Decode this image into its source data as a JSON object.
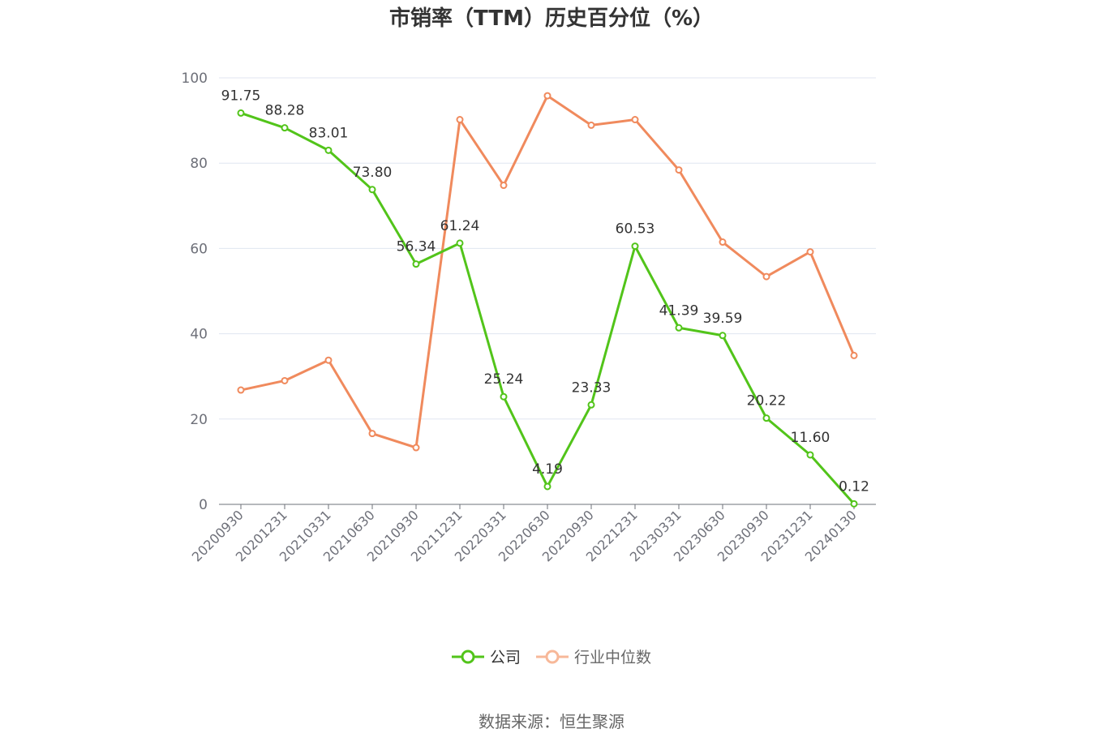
{
  "chart_data": {
    "type": "line",
    "title": "市销率（TTM）历史百分位（%）",
    "categories": [
      "20200930",
      "20201231",
      "20210331",
      "20210630",
      "20210930",
      "20211231",
      "20220331",
      "20220630",
      "20220930",
      "20221231",
      "20230331",
      "20230630",
      "20230930",
      "20231231",
      "20240130"
    ],
    "series": [
      {
        "name": "公司",
        "color": "#52c41a",
        "show_labels": true,
        "values": [
          91.75,
          88.28,
          83.01,
          73.8,
          56.34,
          61.24,
          25.24,
          4.19,
          23.33,
          60.53,
          41.39,
          39.59,
          20.22,
          11.6,
          0.12
        ]
      },
      {
        "name": "行业中位数",
        "color": "#f08a5d",
        "show_labels": false,
        "values": [
          26.8,
          29.0,
          33.8,
          16.6,
          13.3,
          90.2,
          74.8,
          95.8,
          88.9,
          90.2,
          78.4,
          61.5,
          53.4,
          59.2,
          34.9
        ]
      }
    ],
    "ylim": [
      0,
      100
    ],
    "yticks": [
      0,
      20,
      40,
      60,
      80,
      100
    ],
    "grid": true,
    "legend": "bottom-center",
    "source": "数据来源：恒生聚源"
  }
}
